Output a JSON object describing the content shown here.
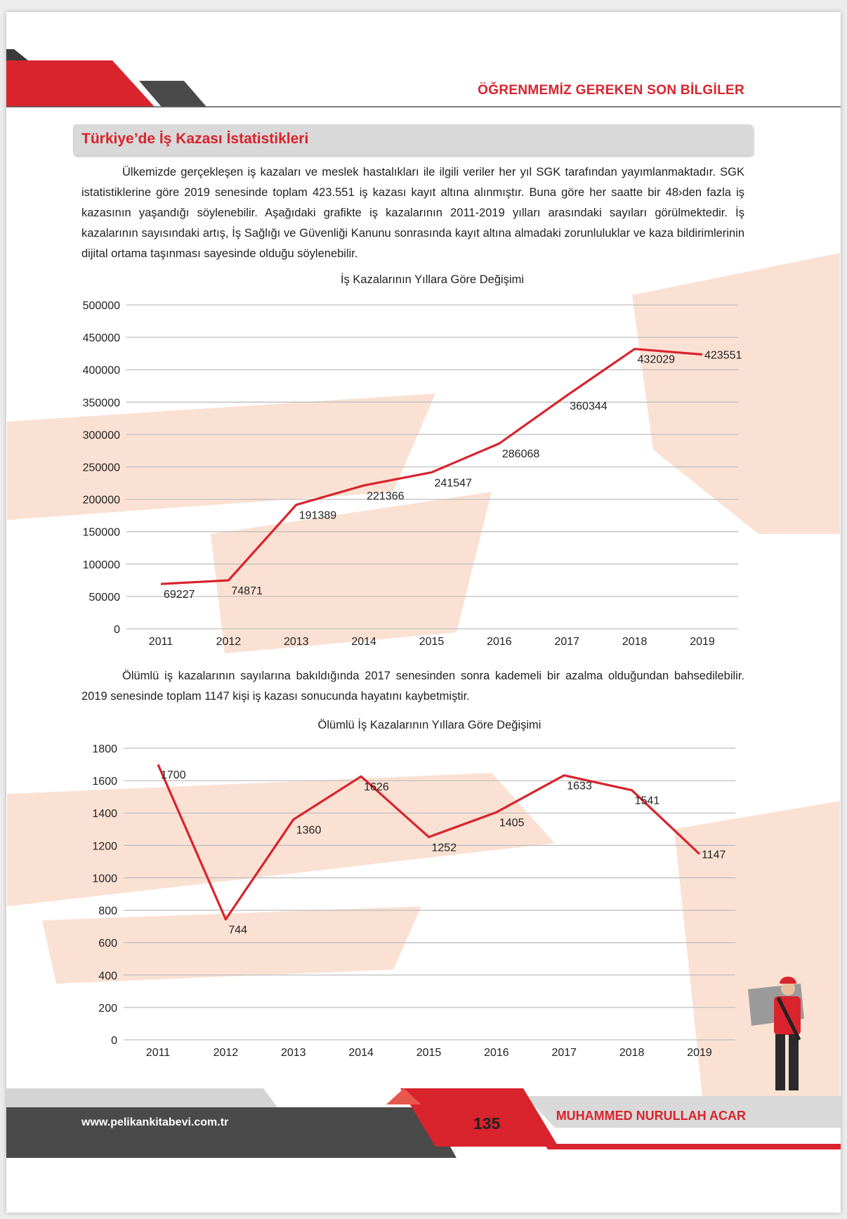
{
  "header": {
    "title": "ÖĞRENMEMİZ GEREKEN SON BİLGİLER"
  },
  "section_title": "Türkiye’de İş Kazası İstatistikleri",
  "paragraphs": [
    "Ülkemizde gerçekleşen iş kazaları ve meslek hastalıkları ile ilgili veriler her yıl SGK tarafından yayımlanmaktadır. SGK istatistiklerine göre 2019 senesinde toplam 423.551 iş kazası kayıt altına alınmıştır. Buna göre her saatte bir 48›den fazla iş kazasının yaşandığı söylenebilir. Aşağıdaki grafikte iş kazalarının 2011-2019 yılları arasındaki sayıları görülmektedir. İş kazalarının sayısındaki artış, İş Sağlığı ve Güvenliği Kanunu sonrasında kayıt altına almadaki zorunluluklar ve kaza bildirimlerinin dijital ortama taşınması sayesinde olduğu söylenebilir.",
    "Ölümlü iş kazalarının sayılarına bakıldığında 2017 senesinden sonra kademeli bir azalma olduğundan bahsedilebilir. 2019 senesinde toplam 1147 kişi iş kazası sonucunda hayatını kaybetmiştir."
  ],
  "chart_data": [
    {
      "type": "line",
      "title": "İş Kazalarının Yıllara Göre Değişimi",
      "categories": [
        "2011",
        "2012",
        "2013",
        "2014",
        "2015",
        "2016",
        "2017",
        "2018",
        "2019"
      ],
      "values": [
        69227,
        74871,
        191389,
        221366,
        241547,
        286068,
        360344,
        432029,
        423551
      ],
      "color": "#d9232d",
      "ylim": [
        0,
        500000
      ],
      "yticks": [
        0,
        50000,
        100000,
        150000,
        200000,
        250000,
        300000,
        350000,
        400000,
        450000,
        500000
      ],
      "grid": true
    },
    {
      "type": "line",
      "title": "Ölümlü İş Kazalarının Yıllara Göre Değişimi",
      "categories": [
        "2011",
        "2012",
        "2013",
        "2014",
        "2015",
        "2016",
        "2017",
        "2018",
        "2019"
      ],
      "values": [
        1700,
        744,
        1360,
        1626,
        1252,
        1405,
        1633,
        1541,
        1147
      ],
      "color": "#d9232d",
      "ylim": [
        0,
        1800
      ],
      "yticks": [
        0,
        200,
        400,
        600,
        800,
        1000,
        1200,
        1400,
        1600,
        1800
      ],
      "grid": true
    }
  ],
  "footer": {
    "website": "www.pelikankitabevi.com.tr",
    "page": "135",
    "author": "MUHAMMED NURULLAH ACAR"
  }
}
